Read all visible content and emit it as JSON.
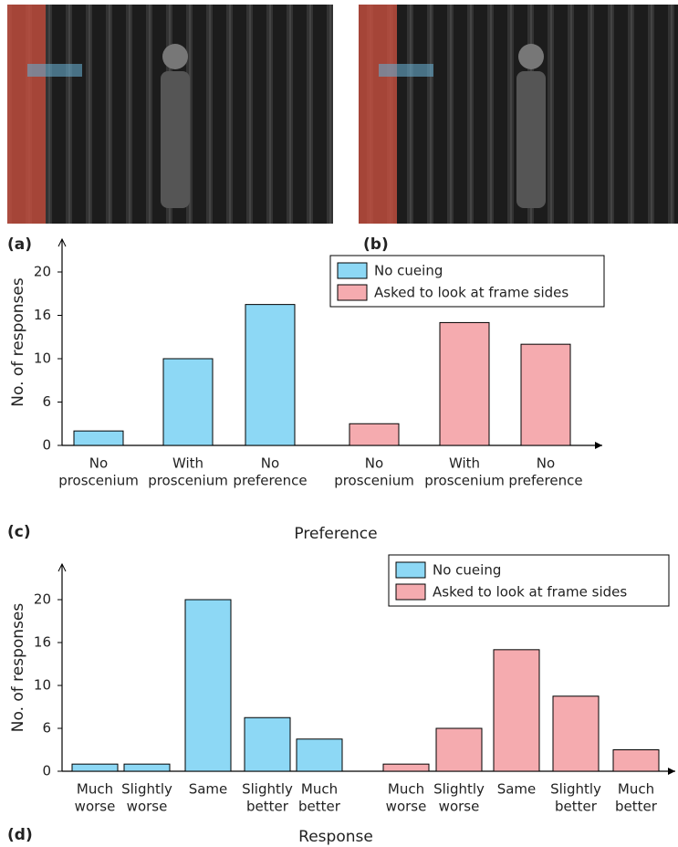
{
  "panel_labels": [
    "(a)",
    "(b)"
  ],
  "chart_data": [
    {
      "type": "bar",
      "label": "(c)",
      "x_label": "Preference",
      "y_label": "No. of responses",
      "categories": [
        [
          "No",
          "proscenium"
        ],
        [
          "With",
          "proscenium"
        ],
        [
          "No",
          "preference"
        ],
        [
          "No",
          "proscenium"
        ],
        [
          "With",
          "proscenium"
        ],
        [
          "No",
          "preference"
        ]
      ],
      "series": [
        {
          "name": "No cueing",
          "color": "#8dd8f5",
          "values": [
            2,
            10,
            17,
            null,
            null,
            null
          ]
        },
        {
          "name": "Asked to look at frame sides",
          "color": "#f5abaf",
          "values": [
            null,
            null,
            null,
            3,
            15,
            12
          ]
        }
      ],
      "ylim": [
        0,
        20
      ],
      "yticks": [
        0,
        6,
        10,
        16,
        20
      ]
    },
    {
      "type": "bar",
      "label": "(d)",
      "x_label": "Response",
      "y_label": "No. of responses",
      "categories": [
        [
          "Much",
          "worse"
        ],
        [
          "Slightly",
          "worse"
        ],
        [
          "Same"
        ],
        [
          "Slightly",
          "better"
        ],
        [
          "Much",
          "better"
        ],
        [
          "Much",
          "worse"
        ],
        [
          "Slightly",
          "worse"
        ],
        [
          "Same"
        ],
        [
          "Slightly",
          "better"
        ],
        [
          "Much",
          "better"
        ]
      ],
      "series": [
        {
          "name": "No cueing",
          "color": "#8dd8f5",
          "values": [
            1,
            1,
            20,
            7,
            4.5,
            null,
            null,
            null,
            null,
            null
          ]
        },
        {
          "name": "Asked to look at frame sides",
          "color": "#f5abaf",
          "values": [
            null,
            null,
            null,
            null,
            null,
            1,
            6,
            15,
            9,
            3
          ]
        }
      ],
      "ylim": [
        0,
        20
      ],
      "yticks": [
        0,
        6,
        10,
        16,
        20
      ]
    }
  ]
}
